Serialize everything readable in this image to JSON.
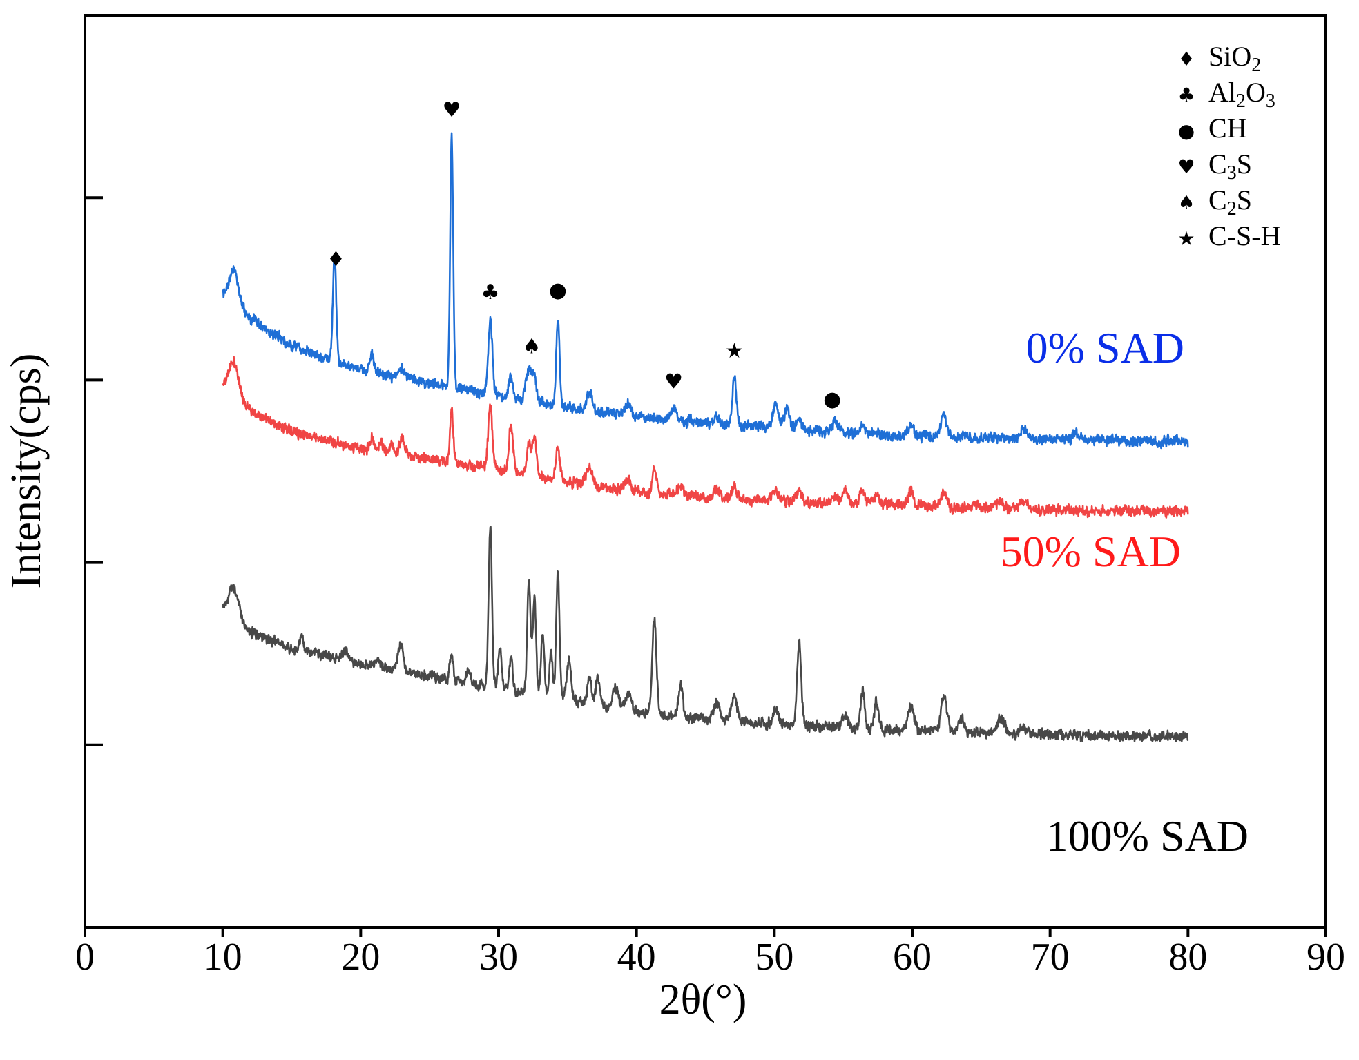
{
  "chart_data": {
    "type": "line",
    "title": "",
    "xlabel": "2θ(°)",
    "ylabel": "Intensity(cps)",
    "xlim": [
      0,
      90
    ],
    "xticks": [
      0,
      10,
      20,
      30,
      40,
      50,
      60,
      70,
      80,
      90
    ],
    "y_ticks_unlabeled": 4,
    "series": [
      {
        "name": "0% SAD",
        "color": "#1f6fd6",
        "label_color": "#0a2ee8",
        "baseline": [
          [
            10,
            820
          ],
          [
            12,
            880
          ],
          [
            15,
            960
          ],
          [
            20,
            1030
          ],
          [
            25,
            1070
          ],
          [
            30,
            1105
          ],
          [
            35,
            1140
          ],
          [
            40,
            1165
          ],
          [
            45,
            1185
          ],
          [
            50,
            1200
          ],
          [
            55,
            1212
          ],
          [
            60,
            1222
          ],
          [
            65,
            1228
          ],
          [
            70,
            1232
          ],
          [
            75,
            1235
          ],
          [
            80,
            1238
          ]
        ],
        "peaks": [
          [
            10.8,
            100,
            0.35
          ],
          [
            18.1,
            310,
            0.12
          ],
          [
            20.8,
            50,
            0.15
          ],
          [
            23,
            30,
            0.2
          ],
          [
            26.6,
            730,
            0.11
          ],
          [
            29.4,
            220,
            0.15
          ],
          [
            30.9,
            60,
            0.15
          ],
          [
            32.2,
            90,
            0.2
          ],
          [
            32.6,
            70,
            0.15
          ],
          [
            34.3,
            260,
            0.12
          ],
          [
            36.6,
            50,
            0.2
          ],
          [
            39.4,
            35,
            0.2
          ],
          [
            42.7,
            35,
            0.2
          ],
          [
            45.8,
            20,
            0.2
          ],
          [
            47.1,
            140,
            0.15
          ],
          [
            50.1,
            75,
            0.2
          ],
          [
            50.9,
            55,
            0.2
          ],
          [
            51.8,
            30,
            0.2
          ],
          [
            54.4,
            30,
            0.2
          ],
          [
            56.4,
            20,
            0.2
          ],
          [
            59.9,
            25,
            0.25
          ],
          [
            62.3,
            60,
            0.2
          ],
          [
            68.1,
            30,
            0.25
          ],
          [
            71.9,
            15,
            0.2
          ]
        ]
      },
      {
        "name": "50% SAD",
        "color": "#f04545",
        "label_color": "#ff1a1a",
        "baseline": [
          [
            10,
            1080
          ],
          [
            12,
            1150
          ],
          [
            15,
            1210
          ],
          [
            20,
            1260
          ],
          [
            25,
            1290
          ],
          [
            30,
            1320
          ],
          [
            35,
            1355
          ],
          [
            40,
            1385
          ],
          [
            45,
            1400
          ],
          [
            50,
            1410
          ],
          [
            55,
            1418
          ],
          [
            60,
            1425
          ],
          [
            65,
            1432
          ],
          [
            70,
            1437
          ],
          [
            75,
            1440
          ],
          [
            80,
            1442
          ]
        ],
        "peaks": [
          [
            10.8,
            100,
            0.35
          ],
          [
            20.8,
            40,
            0.15
          ],
          [
            21.5,
            30,
            0.15
          ],
          [
            22.2,
            25,
            0.15
          ],
          [
            23,
            45,
            0.2
          ],
          [
            26.6,
            150,
            0.12
          ],
          [
            29.4,
            180,
            0.15
          ],
          [
            30.9,
            140,
            0.15
          ],
          [
            32.2,
            90,
            0.15
          ],
          [
            32.6,
            110,
            0.15
          ],
          [
            34.3,
            90,
            0.15
          ],
          [
            36.6,
            50,
            0.2
          ],
          [
            39.4,
            35,
            0.2
          ],
          [
            41.3,
            75,
            0.15
          ],
          [
            43.2,
            30,
            0.2
          ],
          [
            45.8,
            20,
            0.2
          ],
          [
            47.1,
            30,
            0.2
          ],
          [
            50.1,
            30,
            0.2
          ],
          [
            51.8,
            30,
            0.2
          ],
          [
            54.4,
            20,
            0.2
          ],
          [
            55.1,
            40,
            0.2
          ],
          [
            56.4,
            40,
            0.2
          ],
          [
            57.4,
            25,
            0.2
          ],
          [
            59.9,
            45,
            0.2
          ],
          [
            62.3,
            40,
            0.2
          ],
          [
            64.5,
            15,
            0.2
          ],
          [
            66.4,
            20,
            0.25
          ],
          [
            68.1,
            25,
            0.25
          ]
        ]
      },
      {
        "name": "100% SAD",
        "color": "#484848",
        "label_color": "#000000",
        "baseline": [
          [
            10,
            1730
          ],
          [
            12,
            1790
          ],
          [
            15,
            1840
          ],
          [
            20,
            1885
          ],
          [
            25,
            1920
          ],
          [
            30,
            1955
          ],
          [
            35,
            1990
          ],
          [
            40,
            2025
          ],
          [
            45,
            2045
          ],
          [
            50,
            2060
          ],
          [
            55,
            2070
          ],
          [
            60,
            2078
          ],
          [
            65,
            2085
          ],
          [
            70,
            2090
          ],
          [
            75,
            2093
          ],
          [
            80,
            2095
          ]
        ],
        "peaks": [
          [
            10.8,
            90,
            0.35
          ],
          [
            15.7,
            40,
            0.15
          ],
          [
            18.9,
            30,
            0.2
          ],
          [
            21.2,
            25,
            0.2
          ],
          [
            22.9,
            75,
            0.18
          ],
          [
            26.6,
            80,
            0.12
          ],
          [
            27.8,
            35,
            0.15
          ],
          [
            29.4,
            470,
            0.12
          ],
          [
            30.1,
            120,
            0.12
          ],
          [
            30.9,
            100,
            0.12
          ],
          [
            32.2,
            330,
            0.12
          ],
          [
            32.6,
            280,
            0.12
          ],
          [
            33.2,
            180,
            0.12
          ],
          [
            33.8,
            130,
            0.12
          ],
          [
            34.3,
            370,
            0.12
          ],
          [
            35.1,
            120,
            0.15
          ],
          [
            36.6,
            80,
            0.15
          ],
          [
            37.2,
            80,
            0.15
          ],
          [
            38.5,
            60,
            0.2
          ],
          [
            39.4,
            50,
            0.2
          ],
          [
            41.3,
            280,
            0.15
          ],
          [
            43.2,
            90,
            0.15
          ],
          [
            45.8,
            50,
            0.2
          ],
          [
            47.1,
            75,
            0.2
          ],
          [
            50.1,
            40,
            0.2
          ],
          [
            51.8,
            240,
            0.15
          ],
          [
            55.1,
            40,
            0.2
          ],
          [
            56.4,
            110,
            0.15
          ],
          [
            57.4,
            80,
            0.15
          ],
          [
            59.9,
            70,
            0.2
          ],
          [
            62.3,
            110,
            0.2
          ],
          [
            63.6,
            35,
            0.2
          ],
          [
            66.4,
            45,
            0.25
          ],
          [
            68.1,
            20,
            0.25
          ]
        ]
      }
    ],
    "annotations": [
      {
        "symbol": "♦",
        "x": 18.2,
        "phase": "SiO2"
      },
      {
        "symbol": "♥",
        "x": 26.6,
        "phase": "C3S"
      },
      {
        "symbol": "♣",
        "x": 29.4,
        "phase": "Al2O3"
      },
      {
        "symbol": "♠",
        "x": 32.4,
        "phase": "C2S"
      },
      {
        "symbol": "●",
        "x": 34.3,
        "phase": "CH"
      },
      {
        "symbol": "♥",
        "x": 42.7,
        "phase": "C3S"
      },
      {
        "symbol": "★",
        "x": 47.1,
        "phase": "C-S-H"
      },
      {
        "symbol": "●",
        "x": 54.2,
        "phase": "CH"
      }
    ],
    "legend": {
      "position": "top-right",
      "entries": [
        {
          "symbol": "♦",
          "base": "SiO",
          "sub": "2",
          "tail": ""
        },
        {
          "symbol": "♣",
          "base": "Al",
          "sub": "2",
          "tail": "O",
          "sub2": "3"
        },
        {
          "symbol": "●",
          "base": "CH",
          "sub": "",
          "tail": ""
        },
        {
          "symbol": "♥",
          "base": "C",
          "sub": "3",
          "tail": "S"
        },
        {
          "symbol": "♠",
          "base": "C",
          "sub": "2",
          "tail": "S"
        },
        {
          "symbol": "★",
          "base": "C-S-H",
          "sub": "",
          "tail": ""
        }
      ]
    }
  }
}
